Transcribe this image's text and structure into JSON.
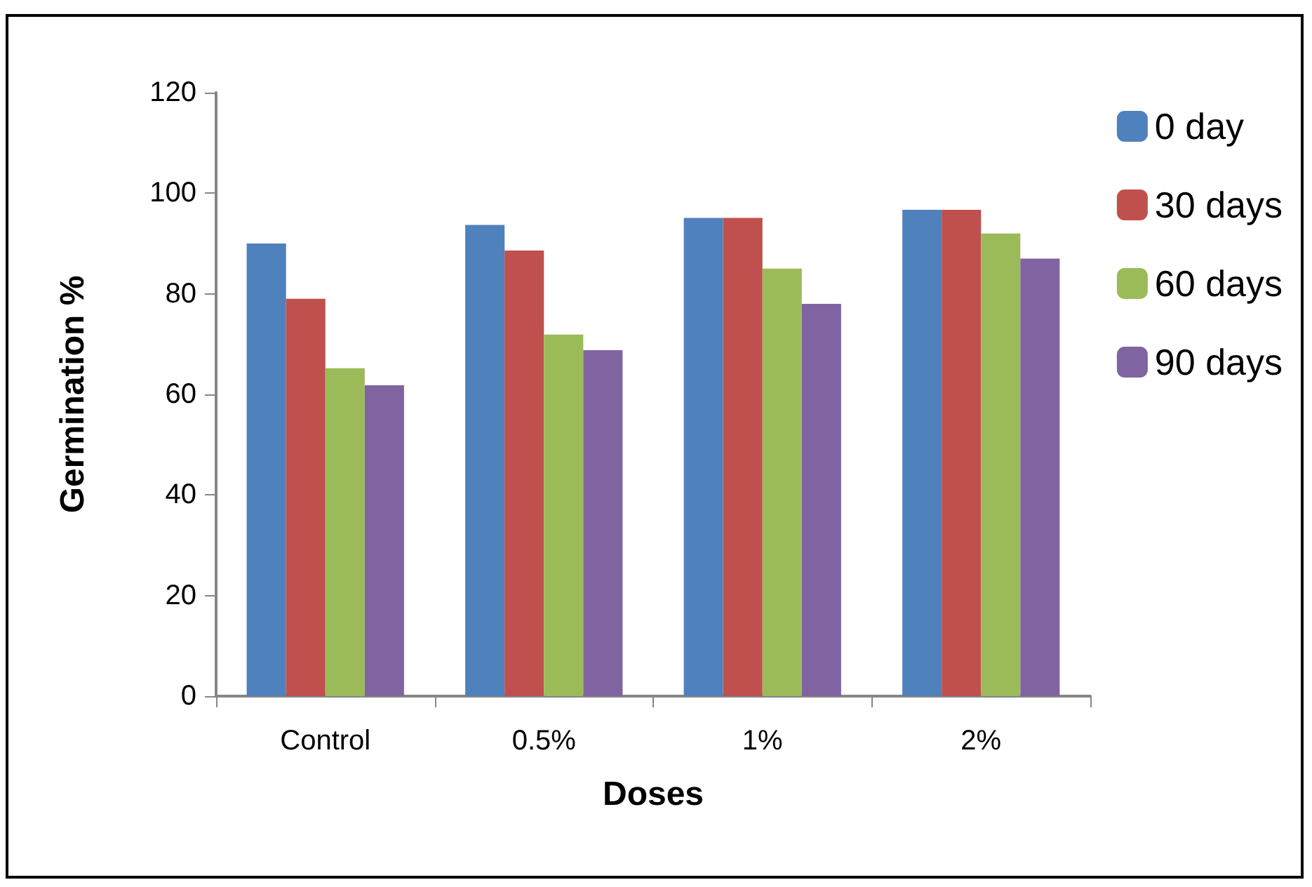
{
  "chart_data": {
    "type": "bar",
    "xlabel": "Doses",
    "ylabel": "Germination %",
    "categories": [
      "Control",
      "0.5%",
      "1%",
      "2%"
    ],
    "series": [
      {
        "name": "0 day",
        "color": "#4f81bd",
        "values": [
          90,
          93.7,
          95.1,
          96.7
        ]
      },
      {
        "name": "30 days",
        "color": "#c0504d",
        "values": [
          79,
          88.6,
          95.1,
          96.7
        ]
      },
      {
        "name": "60 days",
        "color": "#9bbb59",
        "values": [
          65.2,
          71.9,
          85,
          92
        ]
      },
      {
        "name": "90 days",
        "color": "#8064a2",
        "values": [
          61.8,
          68.8,
          78,
          87
        ]
      }
    ],
    "ylim": [
      0,
      120
    ],
    "yticks": [
      0,
      20,
      40,
      60,
      80,
      100,
      120
    ],
    "grid": false,
    "legend": "right"
  }
}
